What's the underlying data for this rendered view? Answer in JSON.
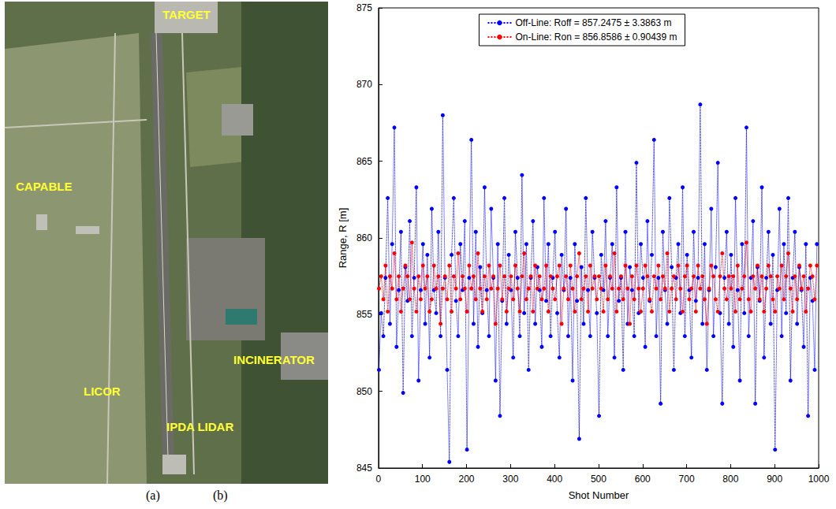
{
  "chart_data": {
    "type": "line",
    "x_label": "Shot Number",
    "y_label": "Range, R [m]",
    "xlim": [
      0,
      1000
    ],
    "xticks": [
      0,
      100,
      200,
      300,
      400,
      500,
      600,
      700,
      800,
      900,
      1000
    ],
    "ylim": [
      845,
      875
    ],
    "yticks": [
      845,
      850,
      855,
      860,
      865,
      870,
      875
    ],
    "grid": false,
    "legend": "top",
    "x": [
      1,
      6,
      11,
      16,
      21,
      26,
      31,
      36,
      41,
      46,
      51,
      56,
      61,
      66,
      71,
      76,
      81,
      86,
      91,
      96,
      101,
      106,
      111,
      116,
      121,
      126,
      131,
      136,
      141,
      146,
      151,
      156,
      161,
      166,
      171,
      176,
      181,
      186,
      191,
      196,
      201,
      206,
      211,
      216,
      221,
      226,
      231,
      236,
      241,
      246,
      251,
      256,
      261,
      266,
      271,
      276,
      281,
      286,
      291,
      296,
      301,
      306,
      311,
      316,
      321,
      326,
      331,
      336,
      341,
      346,
      351,
      356,
      361,
      366,
      371,
      376,
      381,
      386,
      391,
      396,
      401,
      406,
      411,
      416,
      421,
      426,
      431,
      436,
      441,
      446,
      451,
      456,
      461,
      466,
      471,
      476,
      481,
      486,
      491,
      496,
      501,
      506,
      511,
      516,
      521,
      526,
      531,
      536,
      541,
      546,
      551,
      556,
      561,
      566,
      571,
      576,
      581,
      586,
      591,
      596,
      601,
      606,
      611,
      616,
      621,
      626,
      631,
      636,
      641,
      646,
      651,
      656,
      661,
      666,
      671,
      676,
      681,
      686,
      691,
      696,
      701,
      706,
      711,
      716,
      721,
      726,
      731,
      736,
      741,
      746,
      751,
      756,
      761,
      766,
      771,
      776,
      781,
      786,
      791,
      796,
      801,
      806,
      811,
      816,
      821,
      826,
      831,
      836,
      841,
      846,
      851,
      856,
      861,
      866,
      871,
      876,
      881,
      886,
      891,
      896,
      901,
      906,
      911,
      916,
      921,
      926,
      931,
      936,
      941,
      946,
      951,
      956,
      961,
      966,
      971,
      976,
      981,
      986,
      991,
      996
    ],
    "series": [
      {
        "name": "Off-Line: Roff = 857.2475 ± 3.3863 m",
        "color": "#0000ff",
        "marker": "circle",
        "line_style": "dotted",
        "values": [
          851.4,
          855.1,
          853.6,
          857.4,
          862.6,
          854.4,
          859.6,
          867.2,
          852.9,
          856.6,
          860.4,
          849.9,
          858.1,
          855.9,
          861.1,
          853.6,
          857.4,
          863.3,
          850.7,
          856.6,
          859.6,
          854.4,
          858.9,
          852.2,
          861.9,
          856.6,
          855.1,
          860.4,
          853.6,
          868.0,
          857.4,
          851.4,
          845.4,
          858.9,
          862.6,
          855.9,
          853.6,
          859.6,
          856.6,
          861.1,
          846.2,
          857.4,
          866.4,
          854.4,
          860.4,
          852.9,
          858.1,
          855.1,
          863.3,
          856.6,
          853.6,
          861.9,
          857.4,
          850.7,
          859.6,
          848.4,
          855.9,
          862.6,
          854.4,
          858.9,
          856.6,
          852.2,
          860.4,
          857.4,
          853.6,
          864.1,
          855.1,
          859.6,
          851.4,
          857.4,
          861.1,
          854.4,
          858.1,
          856.6,
          852.9,
          862.6,
          855.9,
          859.6,
          853.6,
          857.4,
          860.4,
          855.1,
          852.2,
          858.9,
          856.6,
          861.9,
          853.6,
          857.4,
          850.7,
          859.6,
          855.9,
          846.9,
          858.1,
          854.4,
          862.6,
          856.6,
          853.6,
          860.4,
          857.4,
          855.1,
          848.4,
          858.9,
          856.6,
          861.1,
          853.6,
          857.4,
          859.6,
          852.2,
          863.3,
          855.9,
          857.4,
          851.4,
          860.4,
          854.4,
          858.1,
          856.6,
          853.6,
          864.9,
          855.1,
          859.6,
          857.4,
          852.9,
          861.1,
          855.9,
          858.9,
          866.4,
          853.6,
          857.4,
          849.2,
          860.4,
          856.6,
          854.4,
          862.6,
          858.1,
          851.4,
          857.4,
          859.6,
          855.1,
          863.3,
          853.6,
          858.9,
          856.6,
          852.2,
          860.4,
          855.9,
          857.4,
          868.7,
          854.4,
          859.6,
          851.4,
          856.6,
          861.9,
          853.6,
          858.1,
          864.9,
          855.1,
          849.2,
          857.4,
          860.4,
          854.4,
          858.9,
          852.9,
          862.6,
          856.6,
          850.7,
          859.6,
          855.1,
          867.2,
          853.6,
          857.4,
          861.1,
          849.2,
          858.1,
          855.9,
          863.3,
          852.2,
          857.4,
          860.4,
          854.4,
          858.9,
          846.2,
          856.6,
          861.9,
          853.6,
          859.6,
          855.1,
          862.6,
          850.7,
          857.4,
          860.4,
          854.4,
          858.1,
          856.6,
          852.9,
          859.6,
          848.4,
          857.4,
          855.9,
          851.4,
          859.6
        ]
      },
      {
        "name": "On-Line: Ron = 856.8586 ± 0.90439 m",
        "color": "#ff0000",
        "marker": "circle",
        "line_style": "dotted",
        "values": [
          856.7,
          857.5,
          856.0,
          858.2,
          855.2,
          857.5,
          856.7,
          859.0,
          856.0,
          857.5,
          855.2,
          856.7,
          858.2,
          857.5,
          856.0,
          859.7,
          856.7,
          855.2,
          857.5,
          856.0,
          858.2,
          856.7,
          857.5,
          855.2,
          856.0,
          858.2,
          856.7,
          857.5,
          854.4,
          856.7,
          857.5,
          856.0,
          858.2,
          855.2,
          857.5,
          856.7,
          859.0,
          856.0,
          857.5,
          856.7,
          855.2,
          858.2,
          856.7,
          857.5,
          856.0,
          859.0,
          856.7,
          855.2,
          857.5,
          856.0,
          858.2,
          856.7,
          857.5,
          854.4,
          856.7,
          858.2,
          856.0,
          857.5,
          855.2,
          856.7,
          857.5,
          856.0,
          858.2,
          856.7,
          855.2,
          857.5,
          859.0,
          856.0,
          856.7,
          857.5,
          855.2,
          858.2,
          856.7,
          857.5,
          856.0,
          856.7,
          858.2,
          855.2,
          857.5,
          856.7,
          856.0,
          857.5,
          858.2,
          854.4,
          856.7,
          857.5,
          856.0,
          858.2,
          856.7,
          855.2,
          857.5,
          859.0,
          856.0,
          856.7,
          857.5,
          855.2,
          858.2,
          856.7,
          857.5,
          856.0,
          857.5,
          856.7,
          855.2,
          858.2,
          856.0,
          857.5,
          856.7,
          859.0,
          855.2,
          856.7,
          857.5,
          856.0,
          858.2,
          856.7,
          854.4,
          857.5,
          856.0,
          858.2,
          856.7,
          855.2,
          856.7,
          858.2,
          857.5,
          856.0,
          855.2,
          857.5,
          856.7,
          858.2,
          856.0,
          857.5,
          856.7,
          859.0,
          855.2,
          856.7,
          857.5,
          856.0,
          858.2,
          856.7,
          855.2,
          857.5,
          858.2,
          856.0,
          856.7,
          857.5,
          855.2,
          858.2,
          856.7,
          857.5,
          856.0,
          854.4,
          856.7,
          858.2,
          857.5,
          856.0,
          855.2,
          857.5,
          859.0,
          856.7,
          856.0,
          857.5,
          856.7,
          857.5,
          855.2,
          858.2,
          856.0,
          856.7,
          857.5,
          859.7,
          856.0,
          855.2,
          857.5,
          856.7,
          858.2,
          856.0,
          857.5,
          855.2,
          856.7,
          858.2,
          857.5,
          856.0,
          855.2,
          857.5,
          856.7,
          858.2,
          856.0,
          857.5,
          859.0,
          856.7,
          855.2,
          857.5,
          856.0,
          858.2,
          856.7,
          857.5,
          855.2,
          856.7,
          858.2,
          857.5,
          856.0,
          858.2
        ]
      }
    ]
  },
  "photo": {
    "labels": [
      "TARGET",
      "CAPABLE",
      "INCINERATOR",
      "LICOR",
      "IPDA LIDAR"
    ]
  },
  "panel_labels": [
    "(a)",
    "(b)"
  ]
}
